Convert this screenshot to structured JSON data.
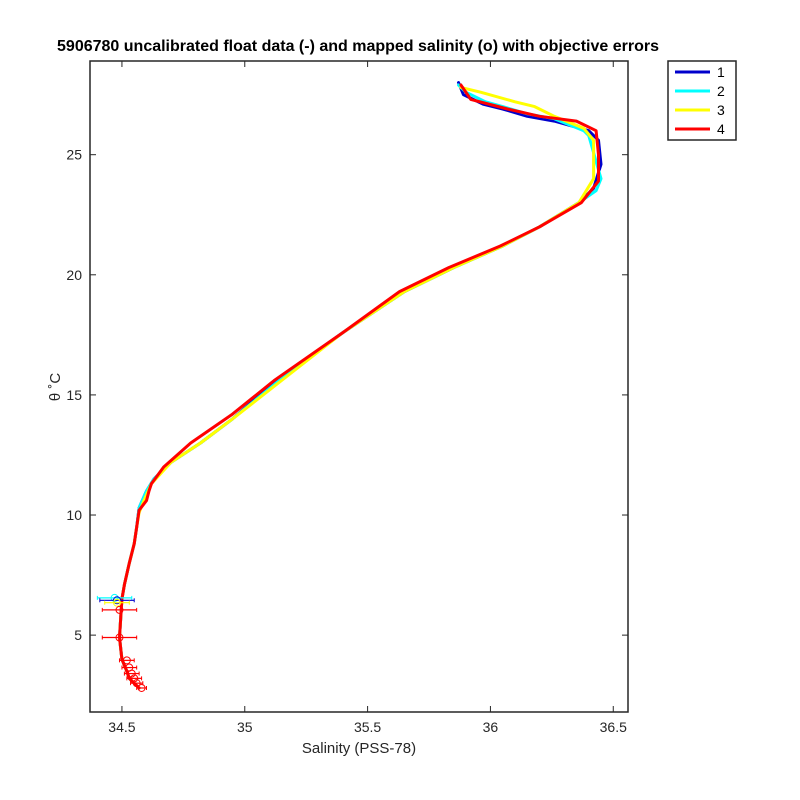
{
  "chart_data": {
    "type": "line",
    "title": "5906780 uncalibrated float data (-) and mapped salinity (o) with objective errors",
    "xlabel": "Salinity (PSS-78)",
    "ylabel": "θ ˚C",
    "xlim": [
      34.37,
      36.56
    ],
    "ylim": [
      1.8,
      28.9
    ],
    "xticks": [
      34.5,
      35,
      35.5,
      36,
      36.5
    ],
    "yticks": [
      5,
      10,
      15,
      20,
      25
    ],
    "grid": false,
    "legend_position": "outside-top-right",
    "legend": [
      "1",
      "2",
      "3",
      "4"
    ],
    "series": [
      {
        "name": "1",
        "color": "#0000cc",
        "x": [
          35.87,
          35.89,
          35.97,
          36.05,
          36.15,
          36.26,
          36.4,
          36.44,
          36.45,
          36.42,
          36.36,
          36.2,
          36.05,
          35.85,
          35.65,
          35.4,
          35.13,
          34.95,
          34.82,
          34.7,
          34.63,
          34.6,
          34.57,
          34.56,
          34.55,
          34.53,
          34.51,
          34.5,
          34.49,
          34.5,
          34.52,
          34.53,
          34.55,
          34.57
        ],
        "y": [
          28.0,
          27.5,
          27.1,
          26.9,
          26.6,
          26.4,
          26.0,
          25.6,
          24.6,
          23.6,
          23.0,
          22.0,
          21.2,
          20.3,
          19.3,
          17.6,
          15.6,
          14.0,
          13.0,
          12.2,
          11.5,
          11.0,
          10.3,
          9.5,
          8.8,
          8.0,
          7.1,
          6.5,
          4.9,
          4.0,
          3.5,
          3.2,
          3.0,
          2.8
        ]
      },
      {
        "name": "2",
        "color": "#00ffff",
        "x": [
          35.87,
          35.9,
          35.98,
          36.05,
          36.15,
          36.26,
          36.38,
          36.4,
          36.45,
          36.43,
          36.36,
          36.2,
          36.05,
          35.85,
          35.65,
          35.4,
          35.14,
          34.95,
          34.82,
          34.7,
          34.63,
          34.6,
          34.57,
          34.56,
          34.55,
          34.53,
          34.51,
          34.5,
          34.49,
          34.5,
          34.52,
          34.53,
          34.55,
          34.57
        ],
        "y": [
          27.9,
          27.6,
          27.2,
          27.0,
          26.7,
          26.5,
          26.0,
          25.8,
          24.0,
          23.5,
          23.0,
          22.0,
          21.2,
          20.3,
          19.3,
          17.6,
          15.6,
          14.0,
          13.0,
          12.2,
          11.5,
          11.0,
          10.3,
          9.5,
          8.8,
          8.0,
          7.1,
          6.5,
          4.9,
          4.0,
          3.5,
          3.2,
          3.0,
          2.8
        ]
      },
      {
        "name": "3",
        "color": "#ffff00",
        "x": [
          35.88,
          35.96,
          36.1,
          36.18,
          36.26,
          36.38,
          36.42,
          36.42,
          36.36,
          36.2,
          36.05,
          35.85,
          35.65,
          35.4,
          35.15,
          34.95,
          34.82,
          34.7,
          34.62,
          34.59,
          34.57,
          34.56,
          34.55,
          34.53,
          34.51,
          34.5,
          34.49,
          34.5,
          34.52,
          34.53,
          34.55,
          34.57
        ],
        "y": [
          27.8,
          27.6,
          27.2,
          27.0,
          26.6,
          26.1,
          25.6,
          24.0,
          23.0,
          22.0,
          21.2,
          20.3,
          19.3,
          17.6,
          15.6,
          14.0,
          13.0,
          12.2,
          11.3,
          10.6,
          10.1,
          9.5,
          8.8,
          8.0,
          7.1,
          6.5,
          4.9,
          4.0,
          3.5,
          3.2,
          3.0,
          2.8
        ]
      },
      {
        "name": "4",
        "color": "#ff0000",
        "x": [
          35.88,
          35.92,
          36.07,
          36.2,
          36.35,
          36.43,
          36.44,
          36.44,
          36.37,
          36.2,
          36.04,
          35.83,
          35.63,
          35.4,
          35.12,
          34.95,
          34.78,
          34.67,
          34.62,
          34.61,
          34.6,
          34.57,
          34.56,
          34.55,
          34.53,
          34.51,
          34.5,
          34.49,
          34.5,
          34.52,
          34.53,
          34.55,
          34.57
        ],
        "y": [
          27.9,
          27.3,
          26.9,
          26.6,
          26.4,
          26.0,
          25.0,
          23.9,
          23.0,
          22.0,
          21.2,
          20.3,
          19.3,
          17.6,
          15.6,
          14.2,
          13.0,
          12.0,
          11.3,
          11.0,
          10.6,
          10.2,
          9.5,
          8.8,
          8.0,
          7.1,
          6.5,
          4.9,
          4.0,
          3.5,
          3.2,
          3.0,
          2.8
        ]
      }
    ],
    "mapped_salinity": [
      {
        "x": 34.47,
        "y": 6.55,
        "err": 0.07,
        "color": "#00ffff"
      },
      {
        "x": 34.48,
        "y": 6.45,
        "err": 0.07,
        "color": "#0000cc"
      },
      {
        "x": 34.48,
        "y": 6.35,
        "err": 0.05,
        "color": "#ffff00"
      },
      {
        "x": 34.49,
        "y": 6.05,
        "err": 0.07,
        "color": "#ff0000"
      },
      {
        "x": 34.49,
        "y": 4.9,
        "err": 0.07,
        "color": "#ff0000"
      },
      {
        "x": 34.52,
        "y": 3.95,
        "err": 0.03,
        "color": "#ff0000"
      },
      {
        "x": 34.53,
        "y": 3.65,
        "err": 0.03,
        "color": "#ff0000"
      },
      {
        "x": 34.54,
        "y": 3.4,
        "err": 0.03,
        "color": "#ff0000"
      },
      {
        "x": 34.55,
        "y": 3.2,
        "err": 0.03,
        "color": "#ff0000"
      },
      {
        "x": 34.56,
        "y": 3.0,
        "err": 0.025,
        "color": "#ff0000"
      },
      {
        "x": 34.58,
        "y": 2.8,
        "err": 0.02,
        "color": "#ff0000"
      }
    ]
  }
}
